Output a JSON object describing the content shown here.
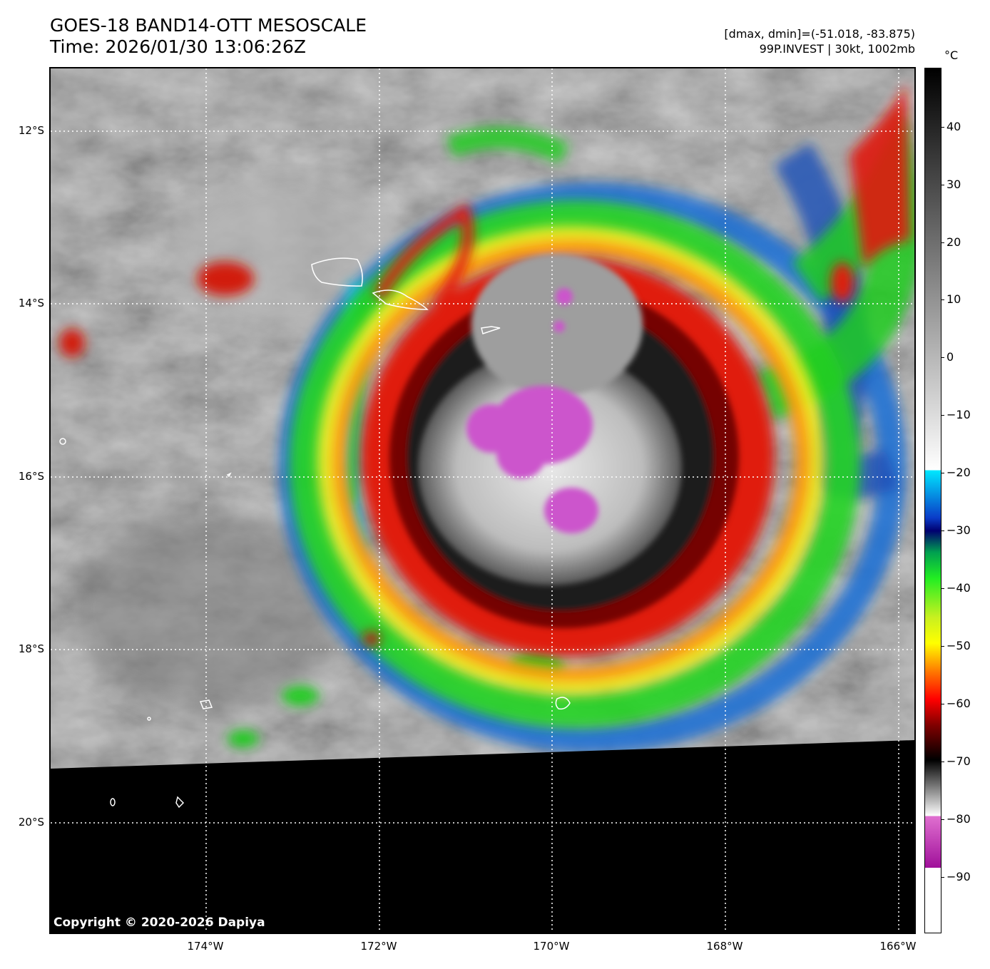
{
  "header": {
    "title": "GOES-18 BAND14-OTT MESOSCALE",
    "time": "Time: 2026/01/30 13:06:26Z",
    "dmax_dmin": "[dmax, dmin]=(-51.018, -83.875)",
    "storm_info": "99P.INVEST | 30kt, 1002mb"
  },
  "map": {
    "lat_labels": [
      "12°S",
      "14°S",
      "16°S",
      "18°S",
      "20°S"
    ],
    "lon_labels": [
      "174°W",
      "172°W",
      "170°W",
      "168°W",
      "166°W"
    ],
    "copyright": "Copyright © 2020-2026 Dapiya"
  },
  "colorbar": {
    "unit": "°C",
    "ticks": [
      "40",
      "30",
      "20",
      "10",
      "0",
      "−10",
      "−20",
      "−30",
      "−40",
      "−50",
      "−60",
      "−70",
      "−80",
      "−90"
    ]
  },
  "colors": {
    "background_cloud": "#8a8a8a",
    "no_data": "#000000",
    "cold_top_magenta": "#cc55cc",
    "gridline": "#ffffff",
    "coastline": "#ffffff"
  }
}
